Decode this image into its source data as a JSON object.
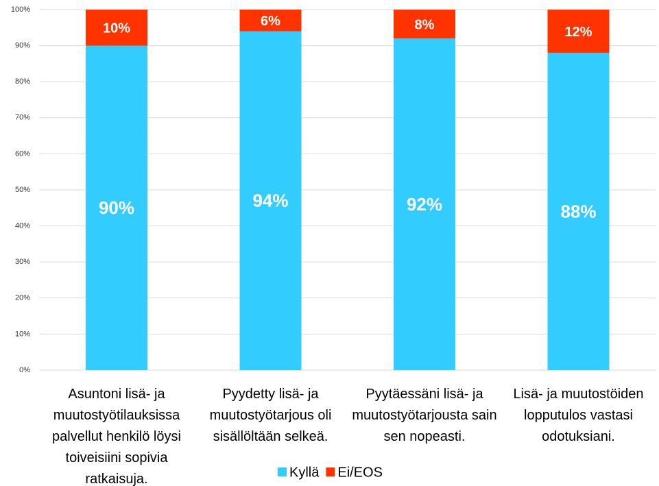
{
  "chart_data": {
    "type": "stacked_bar",
    "categories": [
      "Asuntoni lisä- ja muutostyötilauksissa palvellut henkilö löysi toiveisiini sopivia ratkaisuja.",
      "Pyydetty lisä- ja muutostyötarjous oli sisällöltään selkeä.",
      "Pyytäessäni lisä- ja muutostyötarjousta sain sen nopeasti.",
      "Lisä- ja muutostöiden lopputulos vastasi odotuksiani."
    ],
    "series": [
      {
        "name": "Kyllä",
        "color": "#33ccff",
        "values": [
          90,
          94,
          92,
          88
        ],
        "value_labels": [
          "90%",
          "94%",
          "92%",
          "88%"
        ]
      },
      {
        "name": "Ei/EOS",
        "color": "#ff3300",
        "values": [
          10,
          6,
          8,
          12
        ],
        "value_labels": [
          "10%",
          "6%",
          "8%",
          "12%"
        ]
      }
    ],
    "ylim": [
      0,
      100
    ],
    "yticks": [
      {
        "value": 0,
        "label": "0%"
      },
      {
        "value": 10,
        "label": "10%"
      },
      {
        "value": 20,
        "label": "20%"
      },
      {
        "value": 30,
        "label": "30%"
      },
      {
        "value": 40,
        "label": "40%"
      },
      {
        "value": 50,
        "label": "50%"
      },
      {
        "value": 60,
        "label": "60%"
      },
      {
        "value": 70,
        "label": "70%"
      },
      {
        "value": 80,
        "label": "80%"
      },
      {
        "value": 90,
        "label": "90%"
      },
      {
        "value": 100,
        "label": "100%"
      }
    ],
    "grid": true,
    "legend": "bottom"
  }
}
